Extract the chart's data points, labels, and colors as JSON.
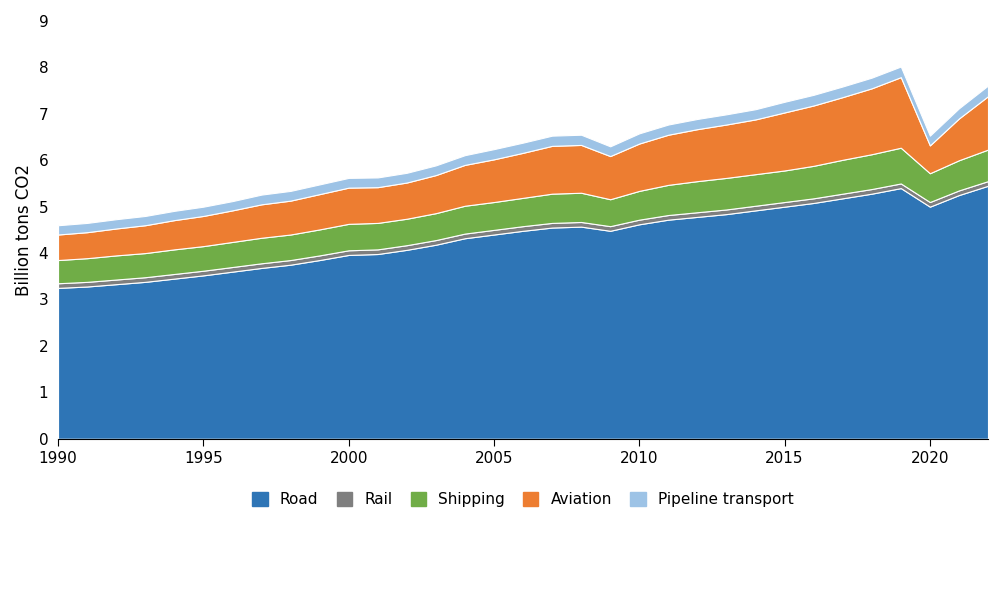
{
  "years": [
    1990,
    1991,
    1992,
    1993,
    1994,
    1995,
    1996,
    1997,
    1998,
    1999,
    2000,
    2001,
    2002,
    2003,
    2004,
    2005,
    2006,
    2007,
    2008,
    2009,
    2010,
    2011,
    2012,
    2013,
    2014,
    2015,
    2016,
    2017,
    2018,
    2019,
    2020,
    2021,
    2022
  ],
  "road": [
    3.25,
    3.28,
    3.33,
    3.38,
    3.45,
    3.52,
    3.6,
    3.68,
    3.75,
    3.85,
    3.96,
    3.98,
    4.07,
    4.18,
    4.32,
    4.4,
    4.48,
    4.55,
    4.57,
    4.48,
    4.62,
    4.72,
    4.78,
    4.84,
    4.92,
    5.0,
    5.08,
    5.18,
    5.28,
    5.4,
    5.0,
    5.25,
    5.45
  ],
  "rail": [
    0.1,
    0.1,
    0.1,
    0.1,
    0.1,
    0.1,
    0.1,
    0.1,
    0.1,
    0.1,
    0.1,
    0.1,
    0.1,
    0.1,
    0.1,
    0.1,
    0.1,
    0.1,
    0.1,
    0.1,
    0.1,
    0.1,
    0.1,
    0.1,
    0.1,
    0.1,
    0.1,
    0.1,
    0.1,
    0.1,
    0.1,
    0.1,
    0.1
  ],
  "shipping": [
    0.5,
    0.51,
    0.52,
    0.52,
    0.53,
    0.53,
    0.54,
    0.55,
    0.55,
    0.56,
    0.57,
    0.57,
    0.57,
    0.58,
    0.6,
    0.6,
    0.61,
    0.63,
    0.63,
    0.58,
    0.62,
    0.65,
    0.67,
    0.68,
    0.68,
    0.68,
    0.7,
    0.73,
    0.75,
    0.77,
    0.62,
    0.65,
    0.68
  ],
  "aviation": [
    0.55,
    0.56,
    0.58,
    0.6,
    0.63,
    0.65,
    0.68,
    0.72,
    0.73,
    0.76,
    0.78,
    0.77,
    0.78,
    0.82,
    0.88,
    0.92,
    0.97,
    1.03,
    1.03,
    0.93,
    1.02,
    1.08,
    1.12,
    1.15,
    1.18,
    1.25,
    1.3,
    1.35,
    1.42,
    1.52,
    0.6,
    0.9,
    1.15
  ],
  "pipeline": [
    0.2,
    0.2,
    0.2,
    0.2,
    0.2,
    0.2,
    0.2,
    0.21,
    0.21,
    0.21,
    0.21,
    0.21,
    0.21,
    0.21,
    0.21,
    0.22,
    0.22,
    0.22,
    0.22,
    0.21,
    0.22,
    0.22,
    0.22,
    0.22,
    0.22,
    0.23,
    0.23,
    0.23,
    0.23,
    0.23,
    0.21,
    0.22,
    0.23
  ],
  "colors": {
    "road": "#2E75B6",
    "rail": "#7F7F7F",
    "shipping": "#70AD47",
    "aviation": "#ED7D31",
    "pipeline": "#9DC3E6"
  },
  "ylabel": "Billion tons CO2",
  "ylim": [
    0,
    9
  ],
  "yticks": [
    0,
    1,
    2,
    3,
    4,
    5,
    6,
    7,
    8,
    9
  ],
  "xticks": [
    1990,
    1995,
    2000,
    2005,
    2010,
    2015,
    2020
  ],
  "legend_labels": [
    "Road",
    "Rail",
    "Shipping",
    "Aviation",
    "Pipeline transport"
  ]
}
